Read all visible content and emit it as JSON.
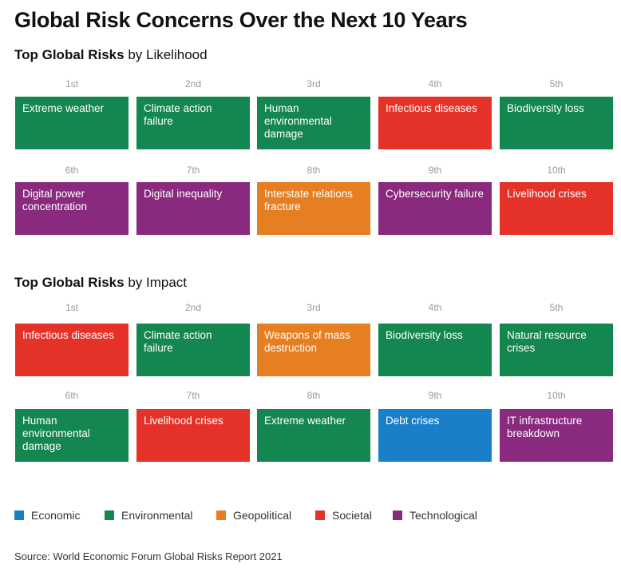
{
  "title": "Global Risk Concerns Over the Next 10 Years",
  "colors": {
    "Economic": "#1a7fc9",
    "Environmental": "#14864f",
    "Geopolitical": "#e67e22",
    "Societal": "#e53228",
    "Technological": "#8a2a7e"
  },
  "chart_data": [
    {
      "type": "table",
      "title_bold": "Top Global Risks",
      "title_rest": " by Likelihood",
      "ranks": [
        "1st",
        "2nd",
        "3rd",
        "4th",
        "5th",
        "6th",
        "7th",
        "8th",
        "9th",
        "10th"
      ],
      "risks": [
        {
          "label": "Extreme weather",
          "category": "Environmental"
        },
        {
          "label": "Climate action failure",
          "category": "Environmental"
        },
        {
          "label": "Human environmental damage",
          "category": "Environmental"
        },
        {
          "label": "Infectious diseases",
          "category": "Societal"
        },
        {
          "label": "Biodiversity loss",
          "category": "Environmental"
        },
        {
          "label": "Digital power concentration",
          "category": "Technological"
        },
        {
          "label": "Digital inequality",
          "category": "Technological"
        },
        {
          "label": "Interstate relations fracture",
          "category": "Geopolitical"
        },
        {
          "label": "Cybersecurity failure",
          "category": "Technological"
        },
        {
          "label": "Livelihood crises",
          "category": "Societal"
        }
      ]
    },
    {
      "type": "table",
      "title_bold": "Top Global Risks",
      "title_rest": " by Impact",
      "ranks": [
        "1st",
        "2nd",
        "3rd",
        "4th",
        "5th",
        "6th",
        "7th",
        "8th",
        "9th",
        "10th"
      ],
      "risks": [
        {
          "label": "Infectious diseases",
          "category": "Societal"
        },
        {
          "label": "Climate action failure",
          "category": "Environmental"
        },
        {
          "label": "Weapons of mass destruction",
          "category": "Geopolitical"
        },
        {
          "label": "Biodiversity loss",
          "category": "Environmental"
        },
        {
          "label": "Natural resource crises",
          "category": "Environmental"
        },
        {
          "label": "Human environmental damage",
          "category": "Environmental"
        },
        {
          "label": "Livelihood crises",
          "category": "Societal"
        },
        {
          "label": "Extreme weather",
          "category": "Environmental"
        },
        {
          "label": "Debt crises",
          "category": "Economic"
        },
        {
          "label": "IT infrastructure breakdown",
          "category": "Technological"
        }
      ]
    }
  ],
  "legend": [
    "Economic",
    "Environmental",
    "Geopolitical",
    "Societal",
    "Technological"
  ],
  "source": "Source: World Economic Forum Global Risks Report 2021"
}
